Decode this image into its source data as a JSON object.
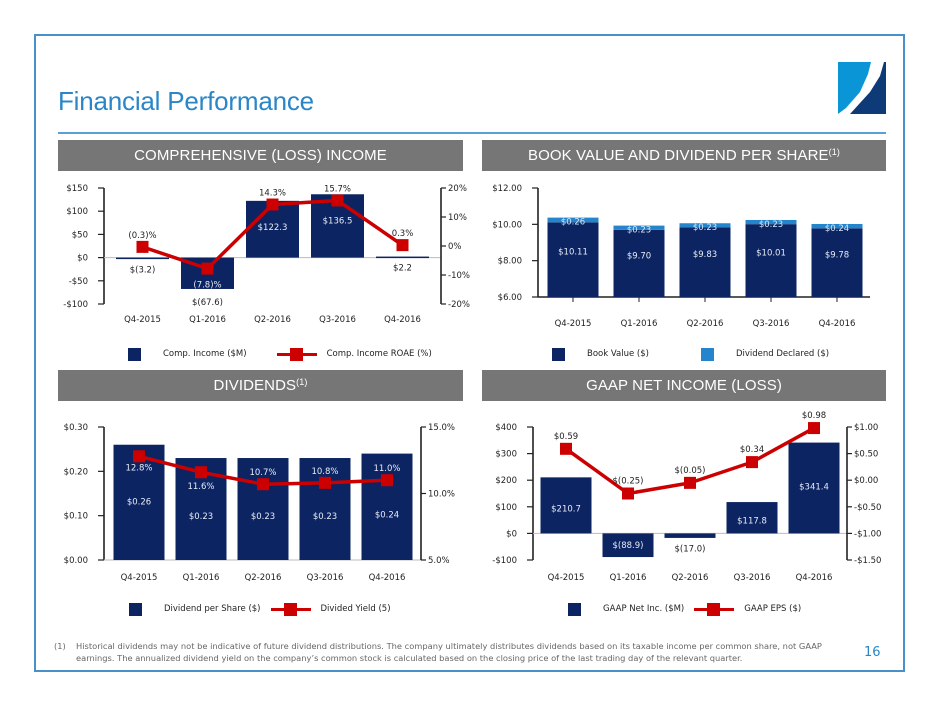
{
  "page": {
    "title": "Financial Performance",
    "page_number": "16",
    "footnote_marker": "(1)",
    "footnote_text": "Historical dividends may not be indicative of future dividend distributions.  The company ultimately distributes dividends based on its taxable income per common share, not GAAP earnings. The annualized dividend yield on the company’s common stock is calculated based on the closing price of the last trading day of the relevant quarter.",
    "colors": {
      "frame": "#4a90c8",
      "title": "#2a86c7",
      "section_bar": "#767676",
      "bar_navy": "#0d2463",
      "bar_light_blue": "#2585cc",
      "line_red": "#cc0000",
      "logo_light": "#0a96d6",
      "logo_dark": "#0f3a78"
    }
  },
  "sections": {
    "comp_income": {
      "label": "COMPREHENSIVE (LOSS) INCOME",
      "sup": ""
    },
    "book_value": {
      "label": "BOOK VALUE AND DIVIDEND PER SHARE",
      "sup": "(1)"
    },
    "dividends": {
      "label": "DIVIDENDS",
      "sup": "(1)"
    },
    "gaap": {
      "label": "GAAP NET INCOME (LOSS)",
      "sup": ""
    }
  },
  "chart_data": [
    {
      "id": "comp_income",
      "type": "bar",
      "title": "COMPREHENSIVE (LOSS) INCOME",
      "categories": [
        "Q4-2015",
        "Q1-2016",
        "Q2-2016",
        "Q3-2016",
        "Q4-2016"
      ],
      "series": [
        {
          "name": "Comp. Income ($M)",
          "type": "bar",
          "axis": "left",
          "values": [
            -3.2,
            -67.6,
            122.3,
            136.5,
            2.2
          ],
          "labels": [
            "$(3.2)",
            "$(67.6)",
            "$122.3",
            "$136.5",
            "$2.2"
          ]
        },
        {
          "name": "Comp. Income ROAE (%)",
          "type": "line",
          "axis": "right",
          "values": [
            -0.3,
            -7.8,
            14.3,
            15.7,
            0.3
          ],
          "labels": [
            "(0.3)%",
            "(7.8)%",
            "14.3%",
            "15.7%",
            "0.3%"
          ]
        }
      ],
      "y_left": {
        "min": -100,
        "max": 150,
        "ticks": [
          -100,
          -50,
          0,
          50,
          100,
          150
        ],
        "tick_labels": [
          "-$100",
          "-$50",
          "$0",
          "$50",
          "$100",
          "$150"
        ]
      },
      "y_right": {
        "min": -20,
        "max": 20,
        "ticks": [
          -20,
          -10,
          0,
          10,
          20
        ],
        "tick_labels": [
          "-20%",
          "-10%",
          "0%",
          "10%",
          "20%"
        ]
      },
      "legend": [
        "Comp. Income ($M)",
        "Comp. Income ROAE (%)"
      ],
      "legend_position": "bottom",
      "grid": false
    },
    {
      "id": "book_value",
      "type": "bar",
      "title": "BOOK VALUE AND DIVIDEND PER SHARE(1)",
      "stacked": true,
      "categories": [
        "Q4-2015",
        "Q1-2016",
        "Q2-2016",
        "Q3-2016",
        "Q4-2016"
      ],
      "series": [
        {
          "name": "Book Value ($)",
          "values": [
            10.11,
            9.7,
            9.83,
            10.01,
            9.78
          ],
          "labels": [
            "$10.11",
            "$9.70",
            "$9.83",
            "$10.01",
            "$9.78"
          ]
        },
        {
          "name": "Dividend Declared ($)",
          "values": [
            0.26,
            0.23,
            0.23,
            0.23,
            0.24
          ],
          "labels": [
            "$0.26",
            "$0.23",
            "$0.23",
            "$0.23",
            "$0.24"
          ]
        }
      ],
      "y_left": {
        "min": 6,
        "max": 12,
        "ticks": [
          6,
          8,
          10,
          12
        ],
        "tick_labels": [
          "$6.00",
          "$8.00",
          "$10.00",
          "$12.00"
        ]
      },
      "legend": [
        "Book Value ($)",
        "Dividend Declared ($)"
      ],
      "legend_position": "bottom",
      "grid": false
    },
    {
      "id": "dividends",
      "type": "bar",
      "title": "DIVIDENDS(1)",
      "categories": [
        "Q4-2015",
        "Q1-2016",
        "Q2-2016",
        "Q3-2016",
        "Q4-2016"
      ],
      "series": [
        {
          "name": "Dividend per Share ($)",
          "type": "bar",
          "axis": "left",
          "values": [
            0.26,
            0.23,
            0.23,
            0.23,
            0.24
          ],
          "labels": [
            "$0.26",
            "$0.23",
            "$0.23",
            "$0.23",
            "$0.24"
          ]
        },
        {
          "name": "Divided Yield (5)",
          "type": "line",
          "axis": "right",
          "values": [
            12.8,
            11.6,
            10.7,
            10.8,
            11.0
          ],
          "labels": [
            "12.8%",
            "11.6%",
            "10.7%",
            "10.8%",
            "11.0%"
          ]
        }
      ],
      "y_left": {
        "min": 0,
        "max": 0.3,
        "ticks": [
          0,
          0.1,
          0.2,
          0.3
        ],
        "tick_labels": [
          "$0.00",
          "$0.10",
          "$0.20",
          "$0.30"
        ]
      },
      "y_right": {
        "min": 5,
        "max": 15,
        "ticks": [
          5,
          10,
          15
        ],
        "tick_labels": [
          "5.0%",
          "10.0%",
          "15.0%"
        ]
      },
      "legend": [
        "Dividend per Share ($)",
        "Divided Yield (5)"
      ],
      "legend_position": "bottom",
      "grid": false
    },
    {
      "id": "gaap",
      "type": "bar",
      "title": "GAAP NET INCOME (LOSS)",
      "categories": [
        "Q4-2015",
        "Q1-2016",
        "Q2-2016",
        "Q3-2016",
        "Q4-2016"
      ],
      "series": [
        {
          "name": "GAAP Net Inc. ($M)",
          "type": "bar",
          "axis": "left",
          "values": [
            210.7,
            -88.9,
            -17.0,
            117.8,
            341.4
          ],
          "labels": [
            "$210.7",
            "$(88.9)",
            "$(17.0)",
            "$117.8",
            "$341.4"
          ]
        },
        {
          "name": "GAAP EPS ($)",
          "type": "line",
          "axis": "right",
          "values": [
            0.59,
            -0.25,
            -0.05,
            0.34,
            0.98
          ],
          "labels": [
            "$0.59",
            "$(0.25)",
            "$(0.05)",
            "$0.34",
            "$0.98"
          ]
        }
      ],
      "y_left": {
        "min": -100,
        "max": 400,
        "ticks": [
          -100,
          0,
          100,
          200,
          300,
          400
        ],
        "tick_labels": [
          "-$100",
          "$0",
          "$100",
          "$200",
          "$300",
          "$400"
        ]
      },
      "y_right": {
        "min": -1.5,
        "max": 1.0,
        "ticks": [
          -1.5,
          -1.0,
          -0.5,
          0,
          0.5,
          1.0
        ],
        "tick_labels": [
          "-$1.50",
          "-$1.00",
          "-$0.50",
          "$0.00",
          "$0.50",
          "$1.00"
        ]
      },
      "legend": [
        "GAAP Net Inc. ($M)",
        "GAAP EPS ($)"
      ],
      "legend_position": "bottom",
      "grid": false
    }
  ]
}
